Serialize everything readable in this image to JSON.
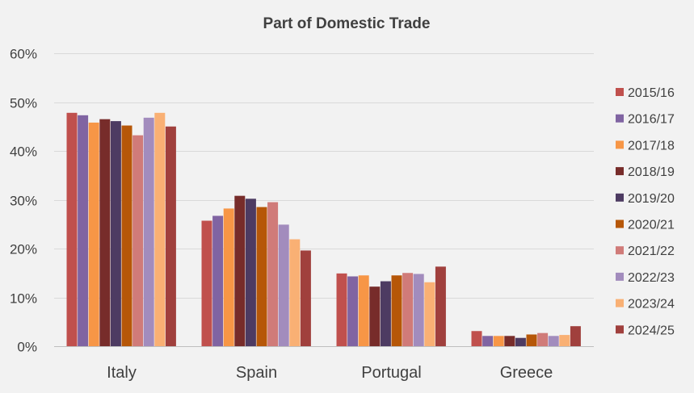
{
  "chart_data": {
    "type": "bar",
    "title": "Part of Domestic Trade",
    "xlabel": "",
    "ylabel": "",
    "ylim": [
      0,
      60
    ],
    "y_ticks": [
      "0%",
      "10%",
      "20%",
      "30%",
      "40%",
      "50%",
      "60%"
    ],
    "y_tick_values": [
      0,
      10,
      20,
      30,
      40,
      50,
      60
    ],
    "grid": true,
    "legend_position": "right",
    "categories": [
      "Italy",
      "Spain",
      "Portugal",
      "Greece"
    ],
    "series": [
      {
        "name": "2015/16",
        "color": "#c0504d",
        "values": [
          47.8,
          25.7,
          14.9,
          3.1
        ]
      },
      {
        "name": "2016/17",
        "color": "#8064a2",
        "values": [
          47.3,
          26.7,
          14.3,
          2.1
        ]
      },
      {
        "name": "2017/18",
        "color": "#f79646",
        "values": [
          45.8,
          28.2,
          14.5,
          2.1
        ]
      },
      {
        "name": "2018/19",
        "color": "#772c2a",
        "values": [
          46.5,
          30.8,
          12.2,
          2.1
        ]
      },
      {
        "name": "2019/20",
        "color": "#4d3b62",
        "values": [
          46.1,
          30.2,
          13.3,
          1.7
        ]
      },
      {
        "name": "2020/21",
        "color": "#b65708",
        "values": [
          45.2,
          28.5,
          14.5,
          2.4
        ]
      },
      {
        "name": "2021/22",
        "color": "#d07b79",
        "values": [
          43.2,
          29.5,
          15.0,
          2.7
        ]
      },
      {
        "name": "2022/23",
        "color": "#a28cbd",
        "values": [
          46.8,
          24.9,
          14.8,
          2.1
        ]
      },
      {
        "name": "2023/24",
        "color": "#f9b074",
        "values": [
          47.8,
          21.9,
          13.1,
          2.3
        ]
      },
      {
        "name": "2024/25",
        "color": "#a0403d",
        "values": [
          45.0,
          19.6,
          16.3,
          4.1
        ]
      }
    ]
  }
}
